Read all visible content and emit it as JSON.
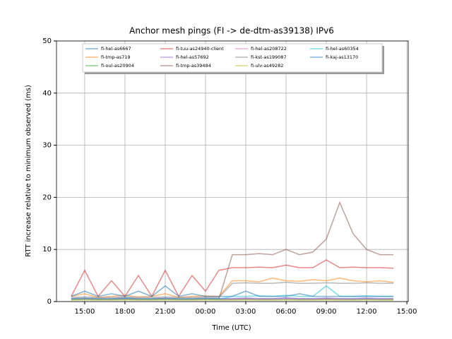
{
  "chart_data": {
    "type": "line",
    "title": "Anchor mesh pings (FI -> de-dtm-as39138) IPv6",
    "x_label": "Time (UTC)",
    "y_label": "RTT increase relative to minimum observed (ms)",
    "x": [
      14,
      15,
      16,
      17,
      18,
      19,
      20,
      21,
      22,
      23,
      24,
      25,
      26,
      27,
      28,
      29,
      30,
      31,
      32,
      33,
      34,
      35,
      36,
      37,
      38
    ],
    "xlim": [
      12.9,
      39.1
    ],
    "xticks": [
      {
        "value": 15,
        "label": "15:00"
      },
      {
        "value": 18,
        "label": "18:00"
      },
      {
        "value": 21,
        "label": "21:00"
      },
      {
        "value": 24,
        "label": "00:00"
      },
      {
        "value": 27,
        "label": "03:00"
      },
      {
        "value": 30,
        "label": "06:00"
      },
      {
        "value": 33,
        "label": "09:00"
      },
      {
        "value": 36,
        "label": "12:00"
      },
      {
        "value": 39,
        "label": "15:00"
      }
    ],
    "ylim": [
      0,
      50
    ],
    "yticks": [
      0,
      10,
      20,
      30,
      40,
      50
    ],
    "grid": true,
    "legend": "upper center",
    "series": [
      {
        "name": "fi-hel-as6667",
        "color": "#1f77b4",
        "values": [
          0.5,
          0.6,
          0.5,
          0.5,
          0.7,
          0.5,
          0.5,
          0.6,
          0.5,
          0.5,
          0.6,
          0.5,
          0.5,
          0.6,
          0.5,
          0.5,
          0.7,
          0.5,
          0.5,
          0.6,
          0.5,
          0.5,
          0.6,
          0.5,
          0.5
        ]
      },
      {
        "name": "fi-tmp-as719",
        "color": "#ff7f0e",
        "values": [
          1,
          1.5,
          0.8,
          1,
          1.2,
          0.9,
          1,
          1.5,
          0.8,
          1,
          1.1,
          1,
          4,
          4,
          3.8,
          4.5,
          4,
          3.9,
          4.2,
          4,
          4.5,
          4,
          3.8,
          4,
          3.7
        ]
      },
      {
        "name": "fi-oul-as20904",
        "color": "#2ca02c",
        "values": [
          0.3,
          0.4,
          0.3,
          0.3,
          0.4,
          0.3,
          0.3,
          0.4,
          0.3,
          0.3,
          0.4,
          0.3,
          0.3,
          0.4,
          0.3,
          0.3,
          0.4,
          0.3,
          0.3,
          0.4,
          0.3,
          0.3,
          0.4,
          0.3,
          0.3
        ]
      },
      {
        "name": "fi-tuu-as24940-client",
        "color": "#d62728",
        "values": [
          1,
          6,
          1,
          4,
          1,
          5,
          1,
          6,
          1,
          5,
          2,
          6,
          6.5,
          6.5,
          6.6,
          6.5,
          7,
          6.5,
          6.5,
          8,
          6.5,
          6.6,
          6.5,
          6.5,
          6.4
        ]
      },
      {
        "name": "fi-hel-as57692",
        "color": "#9467bd",
        "values": [
          0.6,
          0.7,
          0.6,
          0.6,
          0.7,
          0.6,
          0.6,
          0.7,
          0.6,
          0.6,
          0.7,
          0.6,
          0.6,
          0.7,
          0.6,
          0.6,
          0.7,
          0.6,
          0.6,
          0.7,
          0.6,
          0.6,
          0.7,
          0.6,
          0.6
        ]
      },
      {
        "name": "fi-tmp-as39484",
        "color": "#8c564b",
        "values": [
          0.5,
          0.6,
          0.5,
          0.5,
          0.6,
          0.5,
          0.5,
          0.6,
          0.5,
          0.5,
          0.6,
          0.5,
          9,
          9,
          9.2,
          9,
          10,
          9,
          9.5,
          12,
          19,
          13,
          10,
          9,
          9
        ]
      },
      {
        "name": "fi-hel-as208722",
        "color": "#e377c2",
        "values": [
          0.4,
          0.5,
          0.4,
          0.4,
          0.5,
          0.4,
          0.4,
          0.5,
          0.4,
          0.4,
          0.5,
          0.4,
          0.4,
          0.5,
          0.4,
          0.4,
          0.5,
          0.4,
          0.4,
          0.5,
          0.4,
          0.4,
          0.5,
          0.4,
          0.4
        ]
      },
      {
        "name": "fi-kst-as199087",
        "color": "#7f7f7f",
        "values": [
          0.8,
          0.9,
          0.8,
          0.8,
          0.9,
          0.8,
          0.8,
          0.9,
          0.8,
          0.8,
          0.9,
          0.8,
          3.5,
          3.6,
          3.5,
          3.5,
          3.7,
          3.5,
          3.5,
          3.6,
          3.5,
          3.5,
          3.6,
          3.5,
          3.5
        ]
      },
      {
        "name": "fi-ulv-as49282",
        "color": "#bcbd22",
        "values": [
          0.3,
          0.3,
          0.3,
          0.3,
          0.3,
          0.3,
          0.3,
          0.3,
          0.3,
          0.3,
          0.3,
          0.3,
          0.3,
          0.3,
          0.3,
          0.3,
          0.3,
          0.3,
          0.3,
          0.3,
          0.3,
          0.3,
          0.3,
          0.3,
          0.3
        ]
      },
      {
        "name": "fi-hel-as60354",
        "color": "#17becf",
        "values": [
          0.5,
          0.6,
          0.5,
          0.5,
          0.6,
          0.5,
          0.5,
          0.6,
          0.5,
          0.5,
          0.6,
          0.5,
          1,
          1,
          1.1,
          1,
          1.2,
          1,
          1,
          3,
          1,
          1,
          1.1,
          1,
          1
        ]
      },
      {
        "name": "fi-kaj-as13170",
        "color": "#1f77b4",
        "values": [
          1,
          2,
          1,
          1.5,
          1,
          2,
          1,
          3,
          1,
          1.5,
          1,
          1,
          1,
          2,
          1,
          1,
          1,
          1.5,
          1,
          1,
          1,
          1,
          1,
          1,
          1
        ]
      }
    ]
  }
}
